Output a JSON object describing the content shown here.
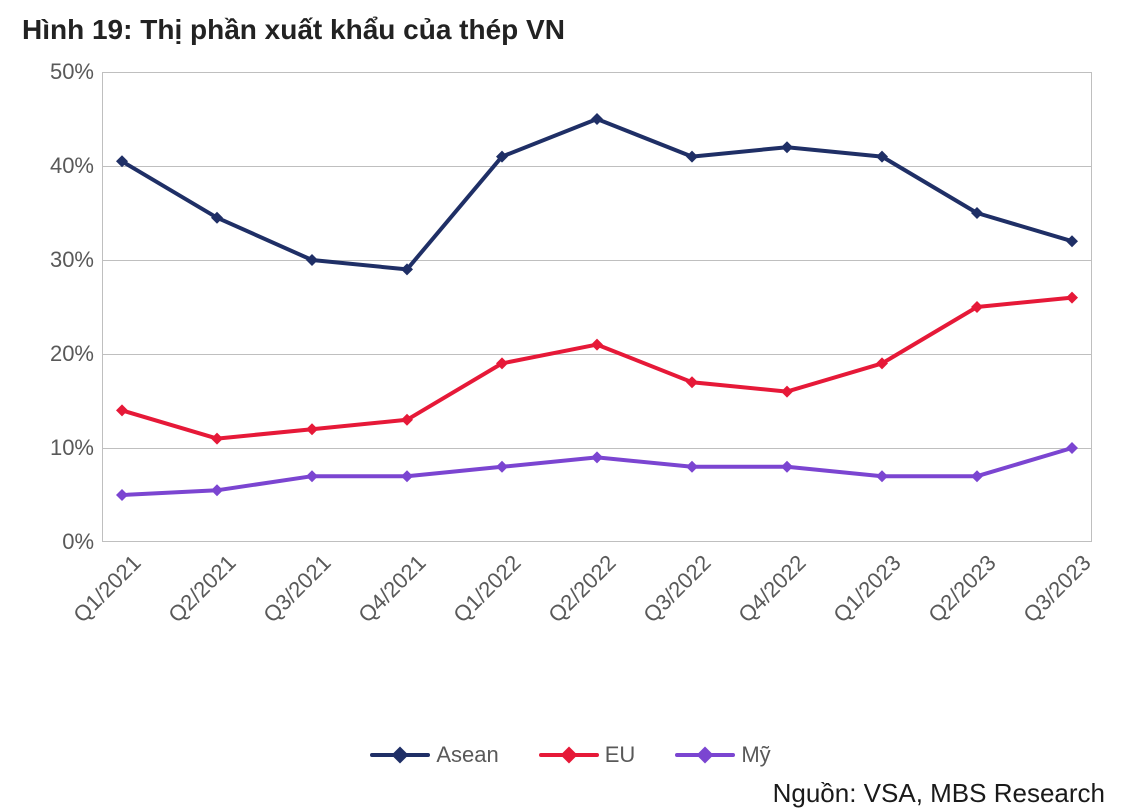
{
  "title": "Hình 19: Thị phần xuất khẩu của thép VN",
  "source": "Nguồn: VSA, MBS Research",
  "chart": {
    "type": "line",
    "background_color": "#ffffff",
    "grid_color": "#bfbfbf",
    "axis_label_color": "#595959",
    "tick_fontsize": 22,
    "line_width": 4,
    "marker_style": "diamond",
    "marker_size": 12,
    "ylim": [
      0,
      50
    ],
    "ytick_step": 10,
    "ytick_suffix": "%",
    "categories": [
      "Q1/2021",
      "Q2/2021",
      "Q3/2021",
      "Q4/2021",
      "Q1/2022",
      "Q2/2022",
      "Q3/2022",
      "Q4/2022",
      "Q1/2023",
      "Q2/2023",
      "Q3/2023"
    ],
    "series": [
      {
        "name": "Asean",
        "color": "#1f2f66",
        "values": [
          40.5,
          34.5,
          30,
          29,
          41,
          45,
          41,
          42,
          41,
          35,
          32
        ]
      },
      {
        "name": "EU",
        "color": "#e61938",
        "values": [
          14,
          11,
          12,
          13,
          19,
          21,
          17,
          16,
          19,
          25,
          26
        ]
      },
      {
        "name": "Mỹ",
        "color": "#7b45d1",
        "values": [
          5,
          5.5,
          7,
          7,
          8,
          9,
          8,
          8,
          7,
          7,
          10
        ]
      }
    ],
    "legend_position": "bottom-center"
  }
}
